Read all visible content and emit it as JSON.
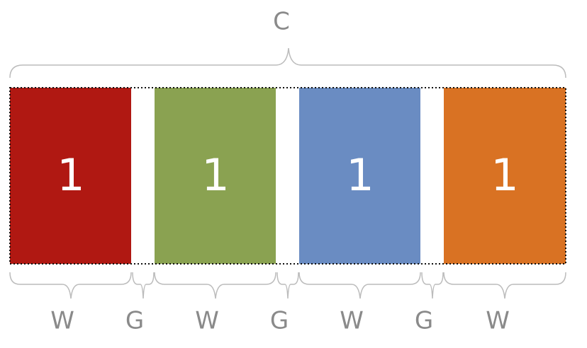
{
  "container": {
    "label": "C"
  },
  "columns": [
    {
      "label": "1",
      "color": "#b01812"
    },
    {
      "label": "1",
      "color": "#8aa251"
    },
    {
      "label": "1",
      "color": "#6a8cc2"
    },
    {
      "label": "1",
      "color": "#d97223"
    }
  ],
  "bottom_labels": {
    "width": "W",
    "gap": "G"
  }
}
